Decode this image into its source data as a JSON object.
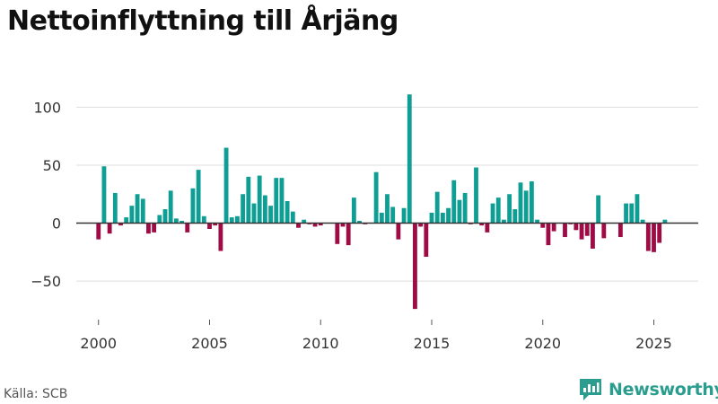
{
  "title": "Nettoinflyttning till Årjäng",
  "source": "Källa: SCB",
  "brand": "Newsworthy",
  "colors": {
    "positive": "#0e9e94",
    "negative": "#9e0b45",
    "grid": "#dddddd",
    "zero_line": "#333333",
    "brand": "#2a9d8f"
  },
  "chart_data": {
    "type": "bar",
    "title": "Nettoinflyttning till Årjäng",
    "xlabel": "",
    "ylabel": "",
    "x_ticks": [
      "2000",
      "2005",
      "2010",
      "2015",
      "2020",
      "2025"
    ],
    "y_ticks": [
      "100",
      "50",
      "0",
      "−50"
    ],
    "xlim": [
      1999.0,
      2027.0
    ],
    "ylim": [
      -77,
      115
    ],
    "grid": true,
    "legend": "none",
    "series": [
      {
        "quarters": [
          "2000Q1",
          "2000Q2",
          "2000Q3",
          "2000Q4",
          "2001Q1",
          "2001Q2",
          "2001Q3",
          "2001Q4",
          "2002Q1",
          "2002Q2",
          "2002Q3",
          "2002Q4",
          "2003Q1",
          "2003Q2",
          "2003Q3",
          "2003Q4",
          "2004Q1",
          "2004Q2",
          "2004Q3",
          "2004Q4",
          "2005Q1",
          "2005Q2",
          "2005Q3",
          "2005Q4",
          "2006Q1",
          "2006Q2",
          "2006Q3",
          "2006Q4",
          "2007Q1",
          "2007Q2",
          "2007Q3",
          "2007Q4",
          "2008Q1",
          "2008Q2",
          "2008Q3",
          "2008Q4",
          "2009Q1",
          "2009Q2",
          "2009Q3",
          "2009Q4",
          "2010Q1",
          "2010Q2",
          "2010Q3",
          "2010Q4",
          "2011Q1",
          "2011Q2",
          "2011Q3",
          "2011Q4",
          "2012Q1",
          "2012Q2",
          "2012Q3",
          "2012Q4",
          "2013Q1",
          "2013Q2",
          "2013Q3",
          "2013Q4",
          "2014Q1",
          "2014Q2",
          "2014Q3",
          "2014Q4",
          "2015Q1",
          "2015Q2",
          "2015Q3",
          "2015Q4",
          "2016Q1",
          "2016Q2",
          "2016Q3",
          "2016Q4",
          "2017Q1",
          "2017Q2",
          "2017Q3",
          "2017Q4",
          "2018Q1",
          "2018Q2",
          "2018Q3",
          "2018Q4",
          "2019Q1",
          "2019Q2",
          "2019Q3",
          "2019Q4",
          "2020Q1",
          "2020Q2",
          "2020Q3",
          "2020Q4",
          "2021Q1",
          "2021Q2",
          "2021Q3",
          "2021Q4",
          "2022Q1",
          "2022Q2",
          "2022Q3",
          "2022Q4",
          "2023Q1",
          "2023Q2",
          "2023Q3",
          "2023Q4",
          "2024Q1",
          "2024Q2",
          "2024Q3",
          "2024Q4",
          "2025Q1",
          "2025Q2",
          "2025Q3"
        ],
        "values": [
          -14,
          49,
          -9,
          26,
          -2,
          5,
          15,
          25,
          21,
          -9,
          -8,
          7,
          12,
          28,
          4,
          2,
          -8,
          30,
          46,
          6,
          -5,
          -2,
          -24,
          65,
          5,
          6,
          25,
          40,
          17,
          41,
          24,
          15,
          39,
          39,
          19,
          10,
          -4,
          3,
          -1,
          -3,
          -2,
          0,
          0,
          -18,
          -3,
          -19,
          22,
          2,
          -1,
          0,
          44,
          9,
          25,
          14,
          -14,
          13,
          111,
          -74,
          -3,
          -29,
          9,
          27,
          9,
          13,
          37,
          20,
          26,
          -1,
          48,
          -2,
          -8,
          17,
          22,
          3,
          25,
          12,
          35,
          28,
          36,
          3,
          -4,
          -19,
          -7,
          0,
          -12,
          -1,
          -6,
          -14,
          -11,
          -22,
          24,
          -13,
          0,
          0,
          -12,
          17,
          17,
          25,
          3,
          -24,
          -25,
          -17,
          3
        ]
      }
    ]
  }
}
